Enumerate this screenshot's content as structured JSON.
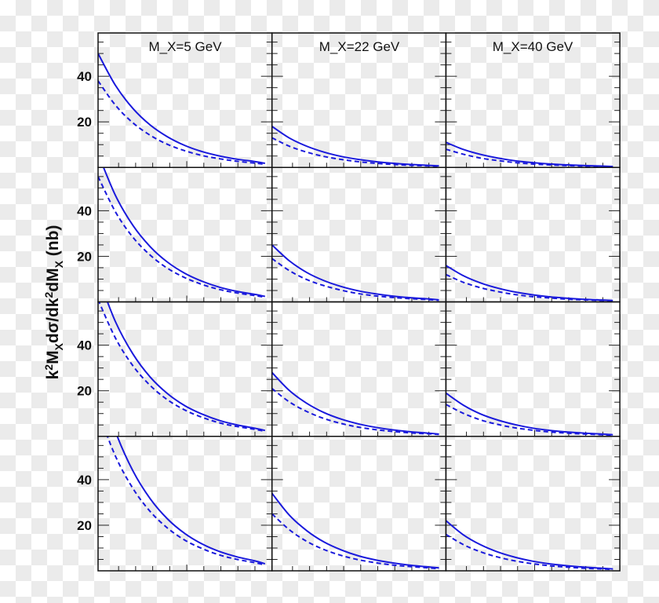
{
  "chart_data": {
    "type": "line",
    "ylabel": "k²M_X dσ/dk²dM_X (nb)",
    "ylim": [
      0,
      59
    ],
    "y_ticks": [
      20,
      40
    ],
    "grid": false,
    "column_titles": [
      "M_X=5 GeV",
      "M_X=22 GeV",
      "M_X=40 GeV"
    ],
    "x": [
      0,
      0.1,
      0.2,
      0.3,
      0.4,
      0.5,
      0.6,
      0.7,
      0.8,
      0.9,
      0.96
    ],
    "line_color": "#1a1adc",
    "panels": [
      [
        {
          "solid": [
            50,
            36.0,
            25.9,
            18.6,
            13.4,
            9.6,
            6.9,
            5.0,
            3.6,
            2.6,
            1.8
          ],
          "dashed": [
            38,
            27.3,
            19.6,
            14.1,
            10.1,
            7.3,
            5.2,
            3.8,
            2.7,
            1.9,
            1.4
          ]
        },
        {
          "solid": [
            18,
            12.9,
            9.3,
            6.7,
            4.8,
            3.5,
            2.5,
            1.8,
            1.3,
            0.9,
            0.7
          ],
          "dashed": [
            13,
            9.3,
            6.7,
            4.8,
            3.5,
            2.5,
            1.8,
            1.3,
            0.9,
            0.7,
            0.5
          ]
        },
        {
          "solid": [
            11,
            7.9,
            5.7,
            4.1,
            2.9,
            2.1,
            1.5,
            1.1,
            0.8,
            0.6,
            0.4
          ],
          "dashed": [
            8,
            5.8,
            4.1,
            3.0,
            2.1,
            1.5,
            1.1,
            0.8,
            0.6,
            0.4,
            0.3
          ]
        }
      ],
      [
        {
          "solid": [
            65,
            46.7,
            33.6,
            24.2,
            17.4,
            12.5,
            9.0,
            6.4,
            4.6,
            3.3,
            2.4
          ],
          "dashed": [
            55,
            39.5,
            28.4,
            20.5,
            14.7,
            10.6,
            7.6,
            5.4,
            3.9,
            2.8,
            2.0
          ]
        },
        {
          "solid": [
            25,
            18.0,
            12.9,
            9.3,
            6.7,
            4.8,
            3.5,
            2.5,
            1.8,
            1.3,
            0.9
          ],
          "dashed": [
            19,
            13.7,
            9.8,
            7.1,
            5.1,
            3.6,
            2.6,
            1.9,
            1.4,
            1.0,
            0.7
          ]
        },
        {
          "solid": [
            16,
            11.5,
            8.3,
            6.0,
            4.3,
            3.1,
            2.2,
            1.6,
            1.1,
            0.8,
            0.6
          ],
          "dashed": [
            12,
            8.6,
            6.2,
            4.5,
            3.2,
            2.3,
            1.7,
            1.2,
            0.9,
            0.6,
            0.4
          ]
        }
      ],
      [
        {
          "solid": [
            70,
            50.3,
            36.2,
            26.0,
            18.7,
            13.4,
            9.7,
            6.9,
            5.0,
            3.6,
            2.6
          ],
          "dashed": [
            60,
            43.1,
            31.0,
            22.3,
            16.0,
            11.5,
            8.3,
            5.9,
            4.3,
            3.1,
            2.2
          ]
        },
        {
          "solid": [
            28,
            20.1,
            14.5,
            10.4,
            7.5,
            5.4,
            3.9,
            2.8,
            2.0,
            1.4,
            1.0
          ],
          "dashed": [
            21,
            15.1,
            10.9,
            7.8,
            5.6,
            4.0,
            2.9,
            2.1,
            1.5,
            1.1,
            0.8
          ]
        },
        {
          "solid": [
            19,
            13.7,
            9.8,
            7.1,
            5.1,
            3.6,
            2.6,
            1.9,
            1.4,
            1.0,
            0.7
          ],
          "dashed": [
            14,
            10.1,
            7.2,
            5.2,
            3.7,
            2.7,
            1.9,
            1.4,
            1.0,
            0.7,
            0.5
          ]
        }
      ],
      [
        {
          "solid": [
            85,
            61.1,
            43.9,
            31.6,
            22.7,
            16.3,
            11.7,
            8.4,
            6.1,
            4.4,
            3.1
          ],
          "dashed": [
            70,
            50.3,
            36.2,
            26.0,
            18.7,
            13.4,
            9.7,
            6.9,
            5.0,
            3.6,
            2.6
          ]
        },
        {
          "solid": [
            34,
            24.4,
            17.6,
            12.6,
            9.1,
            6.5,
            4.7,
            3.4,
            2.4,
            1.7,
            1.3
          ],
          "dashed": [
            25,
            18.0,
            12.9,
            9.3,
            6.7,
            4.8,
            3.5,
            2.5,
            1.8,
            1.3,
            0.9
          ]
        },
        {
          "solid": [
            22,
            15.8,
            11.4,
            8.2,
            5.9,
            4.2,
            3.0,
            2.2,
            1.6,
            1.1,
            0.8
          ],
          "dashed": [
            16,
            11.5,
            8.3,
            6.0,
            4.3,
            3.1,
            2.2,
            1.6,
            1.1,
            0.8,
            0.6
          ]
        }
      ]
    ]
  }
}
